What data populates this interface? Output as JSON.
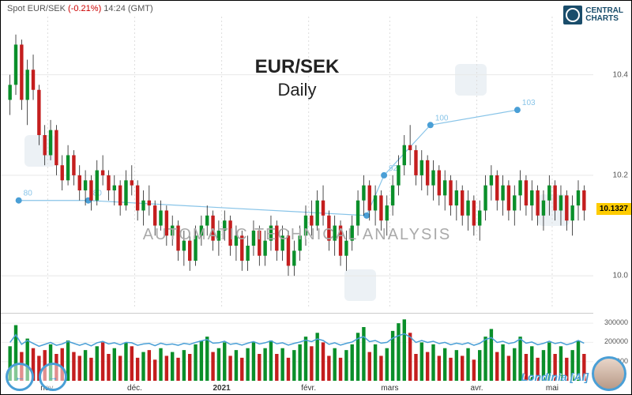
{
  "header": {
    "pair": "Spot EUR/SEK",
    "pct": "(-0.21%)",
    "time": "14:24 (GMT)"
  },
  "logo": {
    "line1": "CENTRAL",
    "line2": "CHARTS"
  },
  "title": {
    "main": "EUR/SEK",
    "sub": "Daily"
  },
  "watermark": "AUTOMATIC  TECHNICAL  ANALYSIS",
  "londinia": "Londinia [AI]",
  "price_chart": {
    "type": "candlestick",
    "ylim": [
      9.95,
      10.5
    ],
    "yticks": [
      10.0,
      10.2,
      10.4
    ],
    "current_price": "10.1327",
    "xlabels": [
      {
        "x": 0.07,
        "label": "nov."
      },
      {
        "x": 0.22,
        "label": "déc."
      },
      {
        "x": 0.37,
        "label": "2021",
        "bold": true
      },
      {
        "x": 0.52,
        "label": "févr."
      },
      {
        "x": 0.66,
        "label": "mars"
      },
      {
        "x": 0.81,
        "label": "avr."
      },
      {
        "x": 0.94,
        "label": "mai"
      }
    ],
    "grid_color": "#e8e8e8",
    "up_color": "#0a8f2a",
    "down_color": "#c41e1e",
    "candles": [
      {
        "o": 10.35,
        "h": 10.4,
        "l": 10.32,
        "c": 10.38
      },
      {
        "o": 10.38,
        "h": 10.48,
        "l": 10.36,
        "c": 10.46
      },
      {
        "o": 10.46,
        "h": 10.47,
        "l": 10.33,
        "c": 10.35
      },
      {
        "o": 10.35,
        "h": 10.43,
        "l": 10.3,
        "c": 10.41
      },
      {
        "o": 10.41,
        "h": 10.44,
        "l": 10.35,
        "c": 10.37
      },
      {
        "o": 10.37,
        "h": 10.38,
        "l": 10.26,
        "c": 10.28
      },
      {
        "o": 10.28,
        "h": 10.3,
        "l": 10.22,
        "c": 10.24
      },
      {
        "o": 10.24,
        "h": 10.31,
        "l": 10.23,
        "c": 10.29
      },
      {
        "o": 10.29,
        "h": 10.3,
        "l": 10.2,
        "c": 10.22
      },
      {
        "o": 10.22,
        "h": 10.24,
        "l": 10.17,
        "c": 10.19
      },
      {
        "o": 10.19,
        "h": 10.26,
        "l": 10.18,
        "c": 10.24
      },
      {
        "o": 10.24,
        "h": 10.25,
        "l": 10.18,
        "c": 10.2
      },
      {
        "o": 10.2,
        "h": 10.22,
        "l": 10.15,
        "c": 10.17
      },
      {
        "o": 10.17,
        "h": 10.21,
        "l": 10.14,
        "c": 10.19
      },
      {
        "o": 10.19,
        "h": 10.2,
        "l": 10.13,
        "c": 10.15
      },
      {
        "o": 10.15,
        "h": 10.23,
        "l": 10.14,
        "c": 10.21
      },
      {
        "o": 10.21,
        "h": 10.24,
        "l": 10.18,
        "c": 10.2
      },
      {
        "o": 10.2,
        "h": 10.21,
        "l": 10.15,
        "c": 10.17
      },
      {
        "o": 10.17,
        "h": 10.2,
        "l": 10.14,
        "c": 10.18
      },
      {
        "o": 10.18,
        "h": 10.19,
        "l": 10.12,
        "c": 10.14
      },
      {
        "o": 10.14,
        "h": 10.21,
        "l": 10.13,
        "c": 10.19
      },
      {
        "o": 10.19,
        "h": 10.22,
        "l": 10.16,
        "c": 10.18
      },
      {
        "o": 10.18,
        "h": 10.19,
        "l": 10.11,
        "c": 10.13
      },
      {
        "o": 10.13,
        "h": 10.17,
        "l": 10.1,
        "c": 10.15
      },
      {
        "o": 10.15,
        "h": 10.18,
        "l": 10.12,
        "c": 10.14
      },
      {
        "o": 10.14,
        "h": 10.15,
        "l": 10.08,
        "c": 10.1
      },
      {
        "o": 10.1,
        "h": 10.15,
        "l": 10.09,
        "c": 10.13
      },
      {
        "o": 10.13,
        "h": 10.14,
        "l": 10.06,
        "c": 10.08
      },
      {
        "o": 10.08,
        "h": 10.12,
        "l": 10.06,
        "c": 10.1
      },
      {
        "o": 10.1,
        "h": 10.11,
        "l": 10.03,
        "c": 10.05
      },
      {
        "o": 10.05,
        "h": 10.09,
        "l": 10.02,
        "c": 10.07
      },
      {
        "o": 10.07,
        "h": 10.08,
        "l": 10.01,
        "c": 10.03
      },
      {
        "o": 10.03,
        "h": 10.1,
        "l": 10.02,
        "c": 10.08
      },
      {
        "o": 10.08,
        "h": 10.12,
        "l": 10.06,
        "c": 10.1
      },
      {
        "o": 10.1,
        "h": 10.14,
        "l": 10.08,
        "c": 10.12
      },
      {
        "o": 10.12,
        "h": 10.13,
        "l": 10.05,
        "c": 10.07
      },
      {
        "o": 10.07,
        "h": 10.11,
        "l": 10.04,
        "c": 10.09
      },
      {
        "o": 10.09,
        "h": 10.13,
        "l": 10.07,
        "c": 10.11
      },
      {
        "o": 10.11,
        "h": 10.12,
        "l": 10.04,
        "c": 10.06
      },
      {
        "o": 10.06,
        "h": 10.1,
        "l": 10.03,
        "c": 10.08
      },
      {
        "o": 10.08,
        "h": 10.09,
        "l": 10.01,
        "c": 10.03
      },
      {
        "o": 10.03,
        "h": 10.08,
        "l": 10.01,
        "c": 10.06
      },
      {
        "o": 10.06,
        "h": 10.11,
        "l": 10.04,
        "c": 10.09
      },
      {
        "o": 10.09,
        "h": 10.1,
        "l": 10.02,
        "c": 10.04
      },
      {
        "o": 10.04,
        "h": 10.09,
        "l": 10.02,
        "c": 10.07
      },
      {
        "o": 10.07,
        "h": 10.12,
        "l": 10.05,
        "c": 10.1
      },
      {
        "o": 10.1,
        "h": 10.11,
        "l": 10.03,
        "c": 10.05
      },
      {
        "o": 10.05,
        "h": 10.1,
        "l": 10.03,
        "c": 10.08
      },
      {
        "o": 10.08,
        "h": 10.09,
        "l": 10.0,
        "c": 10.02
      },
      {
        "o": 10.02,
        "h": 10.07,
        "l": 10.0,
        "c": 10.05
      },
      {
        "o": 10.05,
        "h": 10.1,
        "l": 10.03,
        "c": 10.08
      },
      {
        "o": 10.08,
        "h": 10.14,
        "l": 10.06,
        "c": 10.12
      },
      {
        "o": 10.12,
        "h": 10.15,
        "l": 10.08,
        "c": 10.1
      },
      {
        "o": 10.1,
        "h": 10.17,
        "l": 10.09,
        "c": 10.15
      },
      {
        "o": 10.15,
        "h": 10.18,
        "l": 10.1,
        "c": 10.12
      },
      {
        "o": 10.12,
        "h": 10.13,
        "l": 10.05,
        "c": 10.07
      },
      {
        "o": 10.07,
        "h": 10.12,
        "l": 10.04,
        "c": 10.1
      },
      {
        "o": 10.1,
        "h": 10.11,
        "l": 10.02,
        "c": 10.04
      },
      {
        "o": 10.04,
        "h": 10.09,
        "l": 10.01,
        "c": 10.07
      },
      {
        "o": 10.07,
        "h": 10.12,
        "l": 10.05,
        "c": 10.1
      },
      {
        "o": 10.1,
        "h": 10.17,
        "l": 10.08,
        "c": 10.15
      },
      {
        "o": 10.15,
        "h": 10.2,
        "l": 10.12,
        "c": 10.18
      },
      {
        "o": 10.18,
        "h": 10.19,
        "l": 10.11,
        "c": 10.13
      },
      {
        "o": 10.13,
        "h": 10.18,
        "l": 10.1,
        "c": 10.16
      },
      {
        "o": 10.16,
        "h": 10.17,
        "l": 10.09,
        "c": 10.11
      },
      {
        "o": 10.11,
        "h": 10.16,
        "l": 10.08,
        "c": 10.14
      },
      {
        "o": 10.14,
        "h": 10.2,
        "l": 10.12,
        "c": 10.18
      },
      {
        "o": 10.18,
        "h": 10.24,
        "l": 10.16,
        "c": 10.22
      },
      {
        "o": 10.22,
        "h": 10.28,
        "l": 10.2,
        "c": 10.26
      },
      {
        "o": 10.26,
        "h": 10.3,
        "l": 10.22,
        "c": 10.25
      },
      {
        "o": 10.25,
        "h": 10.26,
        "l": 10.18,
        "c": 10.2
      },
      {
        "o": 10.2,
        "h": 10.25,
        "l": 10.17,
        "c": 10.23
      },
      {
        "o": 10.23,
        "h": 10.24,
        "l": 10.16,
        "c": 10.18
      },
      {
        "o": 10.18,
        "h": 10.23,
        "l": 10.15,
        "c": 10.21
      },
      {
        "o": 10.21,
        "h": 10.22,
        "l": 10.14,
        "c": 10.16
      },
      {
        "o": 10.16,
        "h": 10.21,
        "l": 10.13,
        "c": 10.19
      },
      {
        "o": 10.19,
        "h": 10.2,
        "l": 10.12,
        "c": 10.14
      },
      {
        "o": 10.14,
        "h": 10.19,
        "l": 10.11,
        "c": 10.17
      },
      {
        "o": 10.17,
        "h": 10.18,
        "l": 10.1,
        "c": 10.12
      },
      {
        "o": 10.12,
        "h": 10.17,
        "l": 10.09,
        "c": 10.15
      },
      {
        "o": 10.15,
        "h": 10.16,
        "l": 10.08,
        "c": 10.1
      },
      {
        "o": 10.1,
        "h": 10.15,
        "l": 10.07,
        "c": 10.13
      },
      {
        "o": 10.13,
        "h": 10.2,
        "l": 10.11,
        "c": 10.18
      },
      {
        "o": 10.18,
        "h": 10.22,
        "l": 10.15,
        "c": 10.2
      },
      {
        "o": 10.2,
        "h": 10.21,
        "l": 10.13,
        "c": 10.15
      },
      {
        "o": 10.15,
        "h": 10.2,
        "l": 10.12,
        "c": 10.18
      },
      {
        "o": 10.18,
        "h": 10.19,
        "l": 10.11,
        "c": 10.13
      },
      {
        "o": 10.13,
        "h": 10.18,
        "l": 10.1,
        "c": 10.16
      },
      {
        "o": 10.16,
        "h": 10.21,
        "l": 10.13,
        "c": 10.19
      },
      {
        "o": 10.19,
        "h": 10.2,
        "l": 10.12,
        "c": 10.14
      },
      {
        "o": 10.14,
        "h": 10.19,
        "l": 10.11,
        "c": 10.17
      },
      {
        "o": 10.17,
        "h": 10.18,
        "l": 10.1,
        "c": 10.12
      },
      {
        "o": 10.12,
        "h": 10.17,
        "l": 10.09,
        "c": 10.15
      },
      {
        "o": 10.15,
        "h": 10.2,
        "l": 10.12,
        "c": 10.18
      },
      {
        "o": 10.18,
        "h": 10.19,
        "l": 10.11,
        "c": 10.13
      },
      {
        "o": 10.13,
        "h": 10.18,
        "l": 10.1,
        "c": 10.16
      },
      {
        "o": 10.16,
        "h": 10.17,
        "l": 10.09,
        "c": 10.11
      },
      {
        "o": 10.11,
        "h": 10.16,
        "l": 10.08,
        "c": 10.14
      },
      {
        "o": 10.14,
        "h": 10.19,
        "l": 10.11,
        "c": 10.17
      },
      {
        "o": 10.17,
        "h": 10.18,
        "l": 10.11,
        "c": 10.13
      }
    ],
    "signal_line": {
      "color": "#88c4e8",
      "points": [
        {
          "x": 0.02,
          "y": 10.15,
          "label": "80"
        },
        {
          "x": 0.14,
          "y": 10.15,
          "label": "80"
        },
        {
          "x": 0.62,
          "y": 10.12,
          "label": ""
        },
        {
          "x": 0.65,
          "y": 10.2,
          "label": "92"
        },
        {
          "x": 0.73,
          "y": 10.3,
          "label": "100"
        },
        {
          "x": 0.88,
          "y": 10.33,
          "label": "103"
        }
      ]
    }
  },
  "volume_chart": {
    "type": "bar+line",
    "ylim": [
      0,
      350000
    ],
    "yticks": [
      100000,
      200000,
      300000
    ],
    "line_color": "#4a9fd6",
    "up_color": "#0a8f2a",
    "down_color": "#c41e1e",
    "bars": [
      180,
      290,
      150,
      220,
      170,
      130,
      160,
      190,
      140,
      170,
      210,
      150,
      130,
      160,
      120,
      180,
      200,
      140,
      170,
      130,
      200,
      180,
      120,
      150,
      160,
      110,
      170,
      130,
      150,
      120,
      160,
      140,
      190,
      210,
      230,
      150,
      170,
      200,
      130,
      160,
      120,
      170,
      200,
      140,
      170,
      210,
      140,
      170,
      120,
      160,
      190,
      230,
      180,
      250,
      200,
      130,
      170,
      120,
      160,
      190,
      250,
      280,
      150,
      190,
      130,
      170,
      260,
      300,
      320,
      250,
      140,
      200,
      150,
      190,
      130,
      170,
      120,
      160,
      130,
      170,
      110,
      160,
      230,
      270,
      150,
      190,
      130,
      170,
      230,
      140,
      180,
      120,
      160,
      200,
      140,
      180,
      120,
      160,
      210,
      140
    ],
    "line": [
      200,
      240,
      190,
      210,
      195,
      180,
      190,
      200,
      185,
      192,
      205,
      195,
      185,
      195,
      182,
      198,
      205,
      192,
      198,
      188,
      200,
      198,
      185,
      192,
      195,
      183,
      196,
      188,
      192,
      185,
      195,
      190,
      200,
      208,
      215,
      196,
      198,
      206,
      190,
      195,
      186,
      196,
      204,
      192,
      198,
      208,
      193,
      198,
      186,
      195,
      202,
      212,
      204,
      218,
      210,
      190,
      198,
      186,
      195,
      202,
      220,
      230,
      204,
      210,
      196,
      200,
      222,
      235,
      245,
      228,
      200,
      210,
      200,
      206,
      194,
      200,
      188,
      196,
      190,
      198,
      185,
      195,
      215,
      225,
      200,
      206,
      194,
      200,
      218,
      196,
      202,
      188,
      195,
      206,
      194,
      200,
      188,
      196,
      210,
      196
    ]
  }
}
